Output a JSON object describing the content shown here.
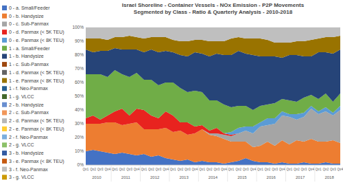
{
  "chart_data": {
    "type": "area",
    "stacked": true,
    "grid": true,
    "legend": "left",
    "title": "Israel Shoreline - Container Vessels - NOx Emission - P2P Movements",
    "subtitle": "Segmented by Class - Ratio & Quarterly Analysis - 2010-2018",
    "categories": [
      "Qtr1",
      "Qtr2",
      "Qtr3",
      "Qtr4",
      "Qtr1",
      "Qtr2",
      "Qtr3",
      "Qtr4",
      "Qtr1",
      "Qtr2",
      "Qtr3",
      "Qtr4",
      "Qtr1",
      "Qtr2",
      "Qtr3",
      "Qtr4",
      "Qtr1",
      "Qtr2",
      "Qtr3",
      "Qtr4",
      "Qtr1",
      "Qtr2",
      "Qtr3",
      "Qtr4",
      "Qtr1",
      "Qtr2",
      "Qtr3",
      "Qtr4",
      "Qtr1",
      "Qtr2",
      "Qtr3",
      "Qtr4",
      "Qtr1",
      "Qtr2",
      "Qtr3",
      "Qtr4"
    ],
    "years": [
      "2010",
      "2011",
      "2012",
      "2013",
      "2014",
      "2015",
      "2016",
      "2017",
      "2018"
    ],
    "ylim": [
      0,
      100
    ],
    "yticks": [
      {
        "value": 0,
        "label": "0%"
      },
      {
        "value": 10,
        "label": "10%"
      },
      {
        "value": 20,
        "label": "20%"
      },
      {
        "value": 30,
        "label": "30%"
      },
      {
        "value": 40,
        "label": "40%"
      },
      {
        "value": 50,
        "label": "50%"
      },
      {
        "value": 60,
        "label": "60%"
      },
      {
        "value": 70,
        "label": "70%"
      },
      {
        "value": 80,
        "label": "80%"
      },
      {
        "value": 90,
        "label": "90%"
      },
      {
        "value": 100,
        "label": "100%"
      }
    ],
    "series": [
      {
        "name": "0 - a. Small/Feeder",
        "color": "#4472c4",
        "values": [
          10,
          11,
          10,
          9,
          8,
          9,
          8,
          7,
          8,
          6,
          7,
          5,
          4,
          3,
          4,
          2,
          3,
          2,
          2,
          1,
          2,
          3,
          5,
          3,
          2,
          2,
          1,
          2,
          1,
          1,
          2,
          1,
          1,
          2,
          1,
          1
        ]
      },
      {
        "name": "0 - b. Handysize",
        "color": "#ed7d31",
        "values": [
          20,
          19,
          20,
          22,
          23,
          20,
          22,
          24,
          18,
          20,
          19,
          22,
          20,
          22,
          18,
          21,
          23,
          20,
          19,
          18,
          15,
          14,
          12,
          10,
          12,
          15,
          13,
          16,
          14,
          17,
          15,
          18,
          16,
          15,
          17,
          15
        ]
      },
      {
        "name": "0 - c. Sub-Panmax",
        "color": "#a5a5a5",
        "values": [
          0,
          0,
          0,
          0,
          0,
          0,
          0,
          0,
          0,
          0,
          0,
          0,
          0,
          0,
          0,
          0,
          0,
          1,
          2,
          3,
          4,
          6,
          8,
          10,
          14,
          12,
          16,
          18,
          20,
          15,
          18,
          22,
          20,
          22,
          18,
          24
        ]
      },
      {
        "name": "0 - d. Panmax (< 5K TEU)",
        "color": "#e8231f",
        "values": [
          4,
          6,
          3,
          5,
          8,
          12,
          6,
          10,
          14,
          10,
          8,
          12,
          12,
          6,
          9,
          5,
          3,
          2,
          4,
          1,
          1,
          0,
          0,
          0,
          0,
          0,
          0,
          0,
          0,
          0,
          0,
          0,
          0,
          0,
          0,
          0
        ]
      },
      {
        "name": "0 - e. Panmax (< 8K TEU)",
        "color": "#5b9bd5",
        "values": [
          0,
          0,
          0,
          0,
          0,
          0,
          0,
          0,
          0,
          0,
          0,
          0,
          0,
          0,
          0,
          0,
          0,
          0,
          0,
          0,
          2,
          4,
          3,
          5,
          3,
          5,
          4,
          3,
          2,
          4,
          3,
          2,
          2,
          3,
          2,
          3
        ]
      },
      {
        "name": "1 - a. Small/Feeder",
        "color": "#70ad47",
        "values": [
          32,
          30,
          33,
          28,
          30,
          25,
          28,
          26,
          22,
          26,
          24,
          21,
          24,
          25,
          22,
          26,
          24,
          22,
          20,
          21,
          18,
          16,
          15,
          12,
          12,
          10,
          11,
          9,
          10,
          9,
          11,
          8,
          9,
          10,
          8,
          9
        ]
      },
      {
        "name": "1 - b. Handysize",
        "color": "#264478",
        "values": [
          18,
          16,
          17,
          19,
          16,
          18,
          20,
          17,
          20,
          22,
          24,
          23,
          22,
          24,
          26,
          28,
          28,
          32,
          34,
          36,
          38,
          40,
          38,
          40,
          36,
          35,
          34,
          30,
          33,
          34,
          30,
          28,
          34,
          30,
          35,
          32
        ]
      },
      {
        "name": "1 - c. Sub-Panmax",
        "color": "#9e480e",
        "values": [
          0,
          0,
          0,
          0,
          0,
          0,
          0,
          0,
          0,
          0,
          0,
          0,
          0,
          0,
          0,
          0,
          0,
          0,
          0,
          0,
          0,
          0,
          0,
          0,
          0,
          0,
          0,
          0,
          0,
          0,
          0,
          0,
          0,
          0,
          0,
          0
        ]
      },
      {
        "name": "1 - d. Panmax (< 5K TEU)",
        "color": "#636363",
        "values": [
          0,
          0,
          0,
          0,
          0,
          0,
          0,
          0,
          0,
          0,
          0,
          0,
          0,
          0,
          0,
          0,
          0,
          0,
          0,
          0,
          0,
          0,
          0,
          0,
          0,
          0,
          0,
          0,
          0,
          0,
          0,
          0,
          0,
          0,
          0,
          0
        ]
      },
      {
        "name": "1 - e. Panmax (< 8K TEU)",
        "color": "#997300",
        "values": [
          8,
          10,
          9,
          8,
          8,
          9,
          10,
          9,
          10,
          9,
          11,
          10,
          9,
          10,
          11,
          9,
          10,
          11,
          9,
          10,
          12,
          10,
          11,
          12,
          13,
          12,
          10,
          11,
          9,
          10,
          11,
          12,
          10,
          11,
          12,
          10
        ]
      },
      {
        "name": "1 - f. Neo-Panmax",
        "color": "#255e91",
        "values": [
          0,
          0,
          0,
          0,
          0,
          0,
          0,
          0,
          0,
          0,
          0,
          0,
          0,
          0,
          0,
          0,
          0,
          0,
          0,
          0,
          0,
          0,
          0,
          0,
          0,
          0,
          0,
          0,
          0,
          0,
          0,
          0,
          0,
          0,
          0,
          0
        ]
      },
      {
        "name": "1 - g. VLCC",
        "color": "#43682b",
        "values": [
          0,
          0,
          0,
          0,
          0,
          0,
          0,
          0,
          0,
          0,
          0,
          0,
          0,
          0,
          0,
          0,
          0,
          0,
          0,
          0,
          0,
          0,
          0,
          0,
          0,
          0,
          0,
          0,
          0,
          0,
          0,
          0,
          0,
          0,
          0,
          0
        ]
      },
      {
        "name": "2 - b. Handysize",
        "color": "#698ed0",
        "values": [
          0,
          0,
          0,
          0,
          0,
          0,
          0,
          0,
          0,
          0,
          0,
          0,
          0,
          0,
          0,
          0,
          0,
          0,
          0,
          0,
          0,
          0,
          0,
          0,
          0,
          0,
          0,
          0,
          0,
          0,
          0,
          0,
          0,
          0,
          0,
          0
        ]
      },
      {
        "name": "2 - c. Sub-Panmax",
        "color": "#f1975a",
        "values": [
          0,
          0,
          0,
          0,
          0,
          0,
          0,
          0,
          0,
          0,
          0,
          0,
          0,
          0,
          0,
          0,
          0,
          0,
          0,
          0,
          0,
          0,
          0,
          0,
          0,
          0,
          0,
          0,
          0,
          0,
          0,
          0,
          0,
          0,
          0,
          0
        ]
      },
      {
        "name": "2 - d. Panmax (< 5K TEU)",
        "color": "#b7b7b7",
        "values": [
          0,
          0,
          0,
          0,
          0,
          0,
          0,
          0,
          0,
          0,
          0,
          0,
          0,
          0,
          0,
          0,
          0,
          0,
          0,
          0,
          0,
          0,
          0,
          0,
          0,
          0,
          0,
          0,
          0,
          0,
          0,
          0,
          0,
          0,
          0,
          0
        ]
      },
      {
        "name": "2 - e. Panmax (< 8K TEU)",
        "color": "#ffcd33",
        "values": [
          0,
          0,
          0,
          0,
          0,
          0,
          0,
          0,
          0,
          0,
          0,
          0,
          0,
          0,
          0,
          0,
          0,
          0,
          0,
          0,
          0,
          0,
          0,
          0,
          0,
          0,
          0,
          0,
          0,
          0,
          0,
          0,
          0,
          0,
          0,
          0
        ]
      },
      {
        "name": "2 - f. Neo-Panmax",
        "color": "#7cafdd",
        "values": [
          0,
          0,
          0,
          0,
          0,
          0,
          0,
          0,
          0,
          0,
          0,
          0,
          0,
          0,
          0,
          0,
          0,
          0,
          0,
          0,
          0,
          0,
          0,
          0,
          0,
          0,
          0,
          0,
          0,
          0,
          0,
          0,
          0,
          0,
          0,
          0
        ]
      },
      {
        "name": "2 - g. VLCC",
        "color": "#8cc168",
        "values": [
          0,
          0,
          0,
          0,
          0,
          0,
          0,
          0,
          0,
          0,
          0,
          0,
          0,
          0,
          0,
          0,
          0,
          0,
          0,
          0,
          0,
          0,
          0,
          0,
          0,
          0,
          0,
          0,
          0,
          0,
          0,
          0,
          0,
          0,
          0,
          0
        ]
      },
      {
        "name": "3 - b. Handysize",
        "color": "#335aa1",
        "values": [
          0,
          0,
          0,
          0,
          0,
          0,
          0,
          0,
          0,
          0,
          0,
          0,
          0,
          0,
          0,
          0,
          0,
          0,
          0,
          0,
          0,
          0,
          0,
          0,
          0,
          0,
          0,
          0,
          0,
          0,
          0,
          0,
          0,
          0,
          0,
          0
        ]
      },
      {
        "name": "3 - e. Panmax (< 8K TEU)",
        "color": "#c55a11",
        "values": [
          0,
          0,
          0,
          0,
          0,
          0,
          0,
          0,
          0,
          0,
          0,
          0,
          0,
          0,
          0,
          0,
          0,
          0,
          0,
          0,
          0,
          0,
          0,
          0,
          0,
          0,
          0,
          0,
          0,
          0,
          0,
          0,
          0,
          0,
          0,
          0
        ]
      },
      {
        "name": "3 - f. Neo-Panmax",
        "color": "#bfbfbf",
        "values": [
          8,
          8,
          8,
          9,
          7,
          7,
          6,
          7,
          8,
          7,
          7,
          7,
          9,
          10,
          10,
          9,
          9,
          10,
          10,
          10,
          8,
          7,
          8,
          8,
          8,
          9,
          11,
          11,
          11,
          10,
          10,
          9,
          8,
          7,
          7,
          6
        ]
      },
      {
        "name": "3 - g. VLCC",
        "color": "#cc9a06",
        "values": [
          0,
          0,
          0,
          0,
          0,
          0,
          0,
          0,
          0,
          0,
          0,
          0,
          0,
          0,
          0,
          0,
          0,
          0,
          0,
          0,
          0,
          0,
          0,
          0,
          0,
          0,
          0,
          0,
          0,
          0,
          0,
          0,
          0,
          0,
          0,
          0
        ]
      }
    ]
  }
}
